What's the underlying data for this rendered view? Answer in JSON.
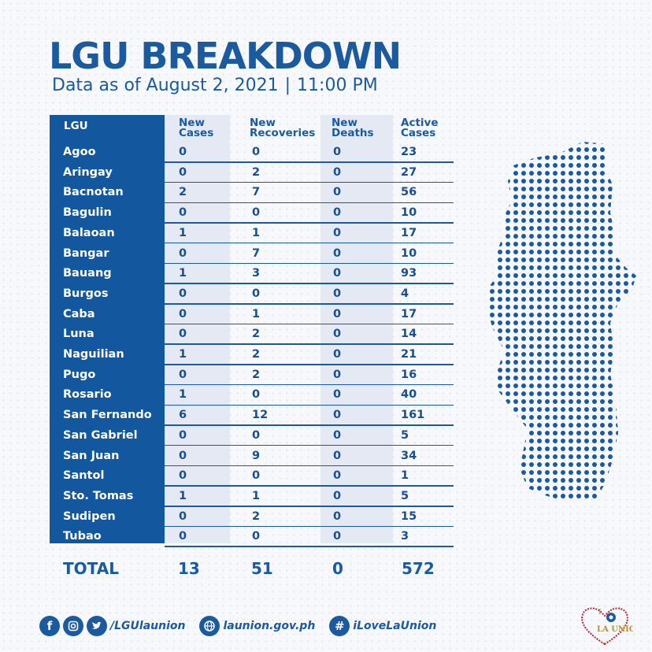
{
  "title": "LGU BREAKDOWN",
  "subtitle": {
    "date_text": "Data as of August 2, 2021",
    "separator": "|",
    "time_text": "11:00 PM"
  },
  "table": {
    "headers": {
      "lgu": "LGU",
      "new_cases_1": "New",
      "new_cases_2": "Cases",
      "new_recoveries_1": "New",
      "new_recoveries_2": "Recoveries",
      "new_deaths_1": "New",
      "new_deaths_2": "Deaths",
      "active_cases_1": "Active",
      "active_cases_2": "Cases"
    },
    "rows": [
      {
        "lgu": "Agoo",
        "new_cases": "0",
        "new_recoveries": "0",
        "new_deaths": "0",
        "active_cases": "23"
      },
      {
        "lgu": "Aringay",
        "new_cases": "0",
        "new_recoveries": "2",
        "new_deaths": "0",
        "active_cases": "27"
      },
      {
        "lgu": "Bacnotan",
        "new_cases": "2",
        "new_recoveries": "7",
        "new_deaths": "0",
        "active_cases": "56"
      },
      {
        "lgu": "Bagulin",
        "new_cases": "0",
        "new_recoveries": "0",
        "new_deaths": "0",
        "active_cases": "10"
      },
      {
        "lgu": "Balaoan",
        "new_cases": "1",
        "new_recoveries": "1",
        "new_deaths": "0",
        "active_cases": "17"
      },
      {
        "lgu": "Bangar",
        "new_cases": "0",
        "new_recoveries": "7",
        "new_deaths": "0",
        "active_cases": "10"
      },
      {
        "lgu": "Bauang",
        "new_cases": "1",
        "new_recoveries": "3",
        "new_deaths": "0",
        "active_cases": "93"
      },
      {
        "lgu": "Burgos",
        "new_cases": "0",
        "new_recoveries": "0",
        "new_deaths": "0",
        "active_cases": "4"
      },
      {
        "lgu": "Caba",
        "new_cases": "0",
        "new_recoveries": "1",
        "new_deaths": "0",
        "active_cases": "17"
      },
      {
        "lgu": "Luna",
        "new_cases": "0",
        "new_recoveries": "2",
        "new_deaths": "0",
        "active_cases": "14"
      },
      {
        "lgu": "Naguilian",
        "new_cases": "1",
        "new_recoveries": "2",
        "new_deaths": "0",
        "active_cases": "21"
      },
      {
        "lgu": "Pugo",
        "new_cases": "0",
        "new_recoveries": "2",
        "new_deaths": "0",
        "active_cases": "16"
      },
      {
        "lgu": "Rosario",
        "new_cases": "1",
        "new_recoveries": "0",
        "new_deaths": "0",
        "active_cases": "40"
      },
      {
        "lgu": "San Fernando",
        "new_cases": "6",
        "new_recoveries": "12",
        "new_deaths": "0",
        "active_cases": "161"
      },
      {
        "lgu": "San Gabriel",
        "new_cases": "0",
        "new_recoveries": "0",
        "new_deaths": "0",
        "active_cases": "5"
      },
      {
        "lgu": "San Juan",
        "new_cases": "0",
        "new_recoveries": "9",
        "new_deaths": "0",
        "active_cases": "34"
      },
      {
        "lgu": "Santol",
        "new_cases": "0",
        "new_recoveries": "0",
        "new_deaths": "0",
        "active_cases": "1"
      },
      {
        "lgu": "Sto. Tomas",
        "new_cases": "1",
        "new_recoveries": "1",
        "new_deaths": "0",
        "active_cases": "5"
      },
      {
        "lgu": "Sudipen",
        "new_cases": "0",
        "new_recoveries": "2",
        "new_deaths": "0",
        "active_cases": "15"
      },
      {
        "lgu": "Tubao",
        "new_cases": "0",
        "new_recoveries": "0",
        "new_deaths": "0",
        "active_cases": "3"
      }
    ],
    "total": {
      "label": "TOTAL",
      "new_cases": "13",
      "new_recoveries": "51",
      "new_deaths": "0",
      "active_cases": "572"
    }
  },
  "footer": {
    "social_handle": "/LGUlaunion",
    "website": "launion.gov.ph",
    "hashtag": "iLoveLaUnion",
    "icons": [
      "facebook-icon",
      "instagram-icon",
      "twitter-icon",
      "globe-icon",
      "hashtag-icon"
    ]
  },
  "logo": {
    "text_top": "I",
    "text_main": "LA UNION"
  },
  "colors": {
    "brand_blue": "#1c5aa0",
    "lgu_column": "#13589e",
    "band": "#e5e9f3",
    "logo_red": "#c8202f",
    "logo_gold": "#b8922b"
  }
}
